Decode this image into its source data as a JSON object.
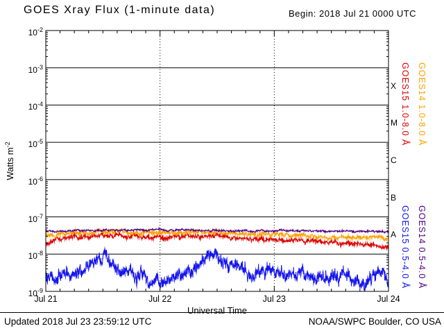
{
  "header": {
    "begin_label": "Begin: 2018 Jul 21 0000 UTC"
  },
  "footer": {
    "updated": "Updated 2018 Jul 23 23:59:12 UTC",
    "credit": "NOAA/SWPC Boulder, CO USA"
  },
  "chart_data": {
    "type": "line",
    "title": "GOES Xray Flux (1-minute data)",
    "xlabel": "Universal Time",
    "ylabel": "Watts m^-2",
    "ylabel_base": "Watts m",
    "ylabel_exp": "-2",
    "y_scale": "log10",
    "y_range": [
      1e-09,
      0.01
    ],
    "y_tick_base": "10",
    "y_tick_exponents": [
      -2,
      -3,
      -4,
      -5,
      -6,
      -7,
      -8,
      -9
    ],
    "x_range_days": [
      0,
      3
    ],
    "x_tick_positions_days": [
      0,
      1,
      2,
      3
    ],
    "x_tick_labels": [
      "Jul 21",
      "Jul 22",
      "Jul 23",
      "Jul 24"
    ],
    "grid": {
      "horizontal_decades": "solid",
      "vertical_day_lines": "dotted"
    },
    "legend_position": "right-vertical",
    "flare_class_bands": [
      {
        "label": "X",
        "between_exponents": [
          -4,
          -3
        ]
      },
      {
        "label": "M",
        "between_exponents": [
          -5,
          -4
        ]
      },
      {
        "label": "C",
        "between_exponents": [
          -6,
          -5
        ]
      },
      {
        "label": "B",
        "between_exponents": [
          -7,
          -6
        ]
      },
      {
        "label": "A",
        "between_exponents": [
          -8,
          -7
        ]
      }
    ],
    "series": [
      {
        "name": "GOES15 1.0-8.0 Å",
        "color": "#dd0000",
        "legend_column": 0,
        "legend_band": "top",
        "z": 2,
        "noise_log10": 0.05,
        "points_day_flux": [
          [
            0.0,
            2e-08
          ],
          [
            0.1,
            2.8e-08
          ],
          [
            0.35,
            3e-08
          ],
          [
            0.6,
            3.2e-08
          ],
          [
            0.9,
            2.9e-08
          ],
          [
            1.1,
            3e-08
          ],
          [
            1.35,
            3.1e-08
          ],
          [
            1.6,
            2.9e-08
          ],
          [
            1.8,
            2.6e-08
          ],
          [
            2.0,
            2.5e-08
          ],
          [
            2.25,
            2.3e-08
          ],
          [
            2.5,
            2.1e-08
          ],
          [
            2.75,
            1.8e-08
          ],
          [
            2.9,
            1.6e-08
          ],
          [
            3.0,
            1.4e-08
          ]
        ]
      },
      {
        "name": "GOES14 1.0-8.0 Å",
        "color": "#ffa000",
        "legend_column": 1,
        "legend_band": "top",
        "z": 3,
        "noise_log10": 0.045,
        "points_day_flux": [
          [
            0.0,
            3.1e-08
          ],
          [
            0.2,
            3.7e-08
          ],
          [
            0.5,
            4e-08
          ],
          [
            0.8,
            3.8e-08
          ],
          [
            1.1,
            3.9e-08
          ],
          [
            1.4,
            4e-08
          ],
          [
            1.7,
            3.6e-08
          ],
          [
            2.0,
            3.3e-08
          ],
          [
            2.3,
            3.1e-08
          ],
          [
            2.6,
            2.9e-08
          ],
          [
            2.85,
            2.7e-08
          ],
          [
            3.0,
            2.5e-08
          ]
        ]
      },
      {
        "name": "GOES15 0.5-4.0 Å",
        "color": "#1414ee",
        "legend_column": 0,
        "legend_band": "bottom",
        "z": 1,
        "noise_log10": 0.16,
        "points_day_flux": [
          [
            0.0,
            2.1e-09
          ],
          [
            0.08,
            1.8e-09
          ],
          [
            0.2,
            2.2e-09
          ],
          [
            0.33,
            4.5e-09
          ],
          [
            0.45,
            8.5e-09
          ],
          [
            0.52,
            7e-09
          ],
          [
            0.62,
            4e-09
          ],
          [
            0.75,
            2.6e-09
          ],
          [
            0.9,
            2e-09
          ],
          [
            1.05,
            2.1e-09
          ],
          [
            1.2,
            2.4e-09
          ],
          [
            1.33,
            3.5e-09
          ],
          [
            1.42,
            9e-09
          ],
          [
            1.5,
            6e-09
          ],
          [
            1.62,
            4.8e-09
          ],
          [
            1.75,
            4.2e-09
          ],
          [
            1.9,
            3.6e-09
          ],
          [
            2.05,
            3.2e-09
          ],
          [
            2.2,
            2.8e-09
          ],
          [
            2.35,
            2.4e-09
          ],
          [
            2.5,
            2.1e-09
          ],
          [
            2.62,
            2.6e-09
          ],
          [
            2.75,
            1.9e-09
          ],
          [
            2.88,
            2.3e-09
          ],
          [
            3.0,
            2.4e-09
          ]
        ]
      },
      {
        "name": "GOES14 0.5-4.0 Å",
        "color": "#4b0082",
        "legend_column": 1,
        "legend_band": "bottom",
        "z": 4,
        "noise_log10": 0.022,
        "points_day_flux": [
          [
            0.0,
            4.1e-08
          ],
          [
            0.5,
            4.3e-08
          ],
          [
            1.0,
            4.4e-08
          ],
          [
            1.5,
            4.3e-08
          ],
          [
            2.0,
            4.2e-08
          ],
          [
            2.5,
            4.1e-08
          ],
          [
            3.0,
            4e-08
          ]
        ]
      }
    ]
  }
}
